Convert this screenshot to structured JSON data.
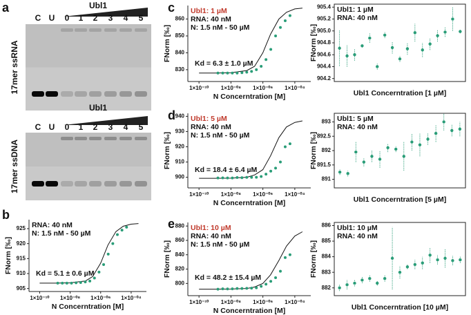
{
  "figure": {
    "panel_labels": [
      "a",
      "b",
      "c",
      "d",
      "e"
    ],
    "gels": [
      {
        "title": "Ubl1",
        "lanes": [
          "C",
          "U",
          "0",
          "1",
          "2",
          "3",
          "4",
          "5"
        ],
        "label": "17mer ssRNA"
      },
      {
        "title": "Ubl1",
        "lanes": [
          "C",
          "U",
          "0",
          "1",
          "2",
          "3",
          "4",
          "5"
        ],
        "label": "17mer ssDNA"
      }
    ]
  },
  "chart_data": [
    {
      "type": "scatter",
      "log_x": true,
      "color": "#2a9d78",
      "ylabel": "FNorm [‰]",
      "xlabel": "N Concerntration [M]",
      "annotations": [
        {
          "text": "RNA: 40 nM",
          "color": "#111111"
        },
        {
          "text": "N: 1.5 nM - 50 µM",
          "color": "#111111"
        }
      ],
      "kd": "Kd = 5.1 ± 0.6 µM",
      "x": [
        1.526e-09,
        3.05e-09,
        6.1e-09,
        1.22e-08,
        2.44e-08,
        4.88e-08,
        9.77e-08,
        1.95e-07,
        3.91e-07,
        7.81e-07,
        1.5625e-06,
        3.125e-06,
        6.25e-06,
        1.25e-05,
        2.5e-05,
        5e-05
      ],
      "values": [
        906.8,
        906.8,
        906.8,
        906.8,
        906.9,
        907,
        907.2,
        907.5,
        908.5,
        910.5,
        913,
        916.5,
        920,
        923,
        924.5,
        925.5
      ],
      "fit": {
        "x": [
          1e-10,
          1e-09,
          1e-08,
          1e-07,
          3e-07,
          1e-06,
          3e-06,
          1e-05,
          3e-05,
          0.0001,
          0.0003
        ],
        "y": [
          906.8,
          906.8,
          906.9,
          907.5,
          909,
          913.5,
          919.5,
          924,
          925.8,
          926.5,
          926.7
        ]
      },
      "xlim": [
        2e-11,
        0.001
      ],
      "ylim": [
        904,
        928
      ],
      "yticks": [
        905,
        910,
        915,
        920,
        925
      ],
      "xticks": [
        {
          "value": 1e-10,
          "label": "1×10⁻¹⁰"
        },
        {
          "value": 1e-08,
          "label": "1×10⁻⁰⁸"
        },
        {
          "value": 1e-06,
          "label": "1×10⁻⁰⁶"
        },
        {
          "value": 0.0001,
          "label": "1×10⁻⁰⁴"
        }
      ]
    },
    {
      "type": "scatter",
      "log_x": true,
      "color": "#2a9d78",
      "ylabel": "FNorm [‰]",
      "xlabel": "N Concerntration [M]",
      "annotations": [
        {
          "text": "Ubl1: 1 µM",
          "color": "#c0392b"
        },
        {
          "text": "RNA: 40 nM",
          "color": "#111111"
        },
        {
          "text": "N: 1.5 nM - 50 µM",
          "color": "#111111"
        }
      ],
      "kd": "Kd = 6.3 ± 1.0 µM",
      "x": [
        1.526e-09,
        3.05e-09,
        6.1e-09,
        1.22e-08,
        2.44e-08,
        4.88e-08,
        9.77e-08,
        1.95e-07,
        3.91e-07,
        7.81e-07,
        1.5625e-06,
        3.125e-06,
        6.25e-06,
        1.25e-05,
        2.5e-05,
        5e-05
      ],
      "values": [
        828,
        828,
        828,
        828,
        828,
        828.2,
        828.5,
        829,
        830,
        832,
        836,
        842,
        850,
        855,
        859,
        862
      ],
      "fit": {
        "x": [
          1e-10,
          1e-09,
          1e-08,
          1e-07,
          3e-07,
          1e-06,
          3e-06,
          1e-05,
          3e-05,
          0.0001,
          0.0003
        ],
        "y": [
          828,
          828,
          828.2,
          829.5,
          832,
          840,
          851,
          860,
          864,
          866,
          866.5
        ]
      },
      "xlim": [
        2e-11,
        0.001
      ],
      "ylim": [
        823,
        868
      ],
      "yticks": [
        830,
        840,
        850,
        860
      ],
      "xticks": [
        {
          "value": 1e-10,
          "label": "1×10⁻¹⁰"
        },
        {
          "value": 1e-08,
          "label": "1×10⁻⁰⁸"
        },
        {
          "value": 1e-06,
          "label": "1×10⁻⁰⁶"
        },
        {
          "value": 0.0001,
          "label": "1×10⁻⁰⁴"
        }
      ]
    },
    {
      "type": "errorbar",
      "frame": true,
      "color": "#2a9d78",
      "ylabel": "FNorm [‰]",
      "xlabel": "Ubl1 Concerntration [1 µM]",
      "annotations": [
        {
          "text": "Ubl1: 1 µM",
          "color": "#111111"
        },
        {
          "text": "RNA: 40 nM",
          "color": "#111111"
        }
      ],
      "values": [
        904.71,
        904.58,
        904.6,
        904.75,
        904.88,
        904.4,
        904.93,
        904.72,
        904.53,
        904.7,
        904.97,
        904.68,
        904.78,
        904.92,
        904.98,
        905.2,
        904.99
      ],
      "errors": [
        0.3,
        0.18,
        0.1,
        0.03,
        0.08,
        0.05,
        0.05,
        0.1,
        0.05,
        0.1,
        0.15,
        0.12,
        0.1,
        0.1,
        0.08,
        0.2,
        0.03
      ],
      "ylim": [
        904.15,
        905.45
      ],
      "yticks": [
        904.2,
        904.4,
        904.6,
        904.8,
        {
          "value": 905,
          "label": "905.0"
        },
        905.2,
        905.4
      ]
    },
    {
      "type": "scatter",
      "log_x": true,
      "color": "#2a9d78",
      "ylabel": "FNorm [‰]",
      "xlabel": "N Concerntration [M]",
      "annotations": [
        {
          "text": "Ubl1: 5 µM",
          "color": "#c0392b"
        },
        {
          "text": "RNA: 40 nM",
          "color": "#111111"
        },
        {
          "text": "N: 1.5 nM - 50 µM",
          "color": "#111111"
        }
      ],
      "kd": "Kd = 18.4 ± 6.4 µM",
      "x": [
        1.526e-09,
        3.05e-09,
        6.1e-09,
        1.22e-08,
        2.44e-08,
        4.88e-08,
        9.77e-08,
        1.95e-07,
        3.91e-07,
        7.81e-07,
        1.5625e-06,
        3.125e-06,
        6.25e-06,
        1.25e-05,
        2.5e-05,
        5e-05
      ],
      "values": [
        899.5,
        899.6,
        899.5,
        899.5,
        899.8,
        899.7,
        899.9,
        899.9,
        900,
        900.5,
        902,
        904,
        906,
        910,
        920,
        922
      ],
      "fit": {
        "x": [
          1e-10,
          1e-09,
          1e-08,
          1e-07,
          3e-07,
          1e-06,
          3e-06,
          1e-05,
          3e-05,
          0.0001,
          0.0003
        ],
        "y": [
          899.3,
          899.3,
          899.4,
          900,
          901.5,
          905,
          914,
          926,
          933,
          936,
          937
        ]
      },
      "xlim": [
        2e-11,
        0.001
      ],
      "ylim": [
        893,
        942
      ],
      "yticks": [
        900,
        910,
        920,
        930,
        940
      ],
      "xticks": [
        {
          "value": 1e-10,
          "label": "1×10⁻¹⁰"
        },
        {
          "value": 1e-08,
          "label": "1×10⁻⁰⁸"
        },
        {
          "value": 1e-06,
          "label": "1×10⁻⁰⁶"
        },
        {
          "value": 0.0001,
          "label": "1×10⁻⁰⁴"
        }
      ]
    },
    {
      "type": "errorbar",
      "frame": true,
      "color": "#2a9d78",
      "ylabel": "FNorm [‰]",
      "xlabel": "Ubl1 Concerntration [5 µM]",
      "annotations": [
        {
          "text": "Ubl1: 5 µM",
          "color": "#111111"
        },
        {
          "text": "RNA: 40 nM",
          "color": "#111111"
        }
      ],
      "values": [
        891.25,
        891.2,
        891.95,
        891.6,
        891.8,
        891.7,
        892.1,
        892.05,
        891.8,
        892.3,
        892.2,
        892.4,
        892.6,
        893.0,
        892.7,
        892.75
      ],
      "errors": [
        0.1,
        0.1,
        0.35,
        0.15,
        0.2,
        0.3,
        0.15,
        0.1,
        0.5,
        0.3,
        0.4,
        0.2,
        0.3,
        0.3,
        0.2,
        0.25
      ],
      "ylim": [
        890.7,
        893.3
      ],
      "yticks": [
        891,
        891.5,
        892,
        892.5,
        893
      ]
    },
    {
      "type": "scatter",
      "log_x": true,
      "color": "#2a9d78",
      "ylabel": "FNorm [‰]",
      "xlabel": "N Concerntration [M]",
      "annotations": [
        {
          "text": "Ubl1: 10 µM",
          "color": "#c0392b"
        },
        {
          "text": "RNA: 40 nM",
          "color": "#111111"
        },
        {
          "text": "N: 1.5 nM - 50 µM",
          "color": "#111111"
        }
      ],
      "kd": "Kd = 48.2 ± 15.4 µM",
      "x": [
        1.526e-09,
        3.05e-09,
        6.1e-09,
        1.22e-08,
        2.44e-08,
        4.88e-08,
        9.77e-08,
        1.95e-07,
        3.91e-07,
        7.81e-07,
        1.5625e-06,
        3.125e-06,
        6.25e-06,
        1.25e-05,
        2.5e-05,
        5e-05
      ],
      "values": [
        792,
        792.5,
        792.4,
        792.5,
        793,
        793,
        793.2,
        793.5,
        794,
        796,
        799,
        803,
        808,
        817,
        836,
        840
      ],
      "fit": {
        "x": [
          1e-10,
          1e-09,
          1e-08,
          1e-07,
          3e-07,
          1e-06,
          3e-06,
          1e-05,
          3e-05,
          0.0001,
          0.0003
        ],
        "y": [
          792,
          792,
          792.2,
          793,
          795,
          800,
          812,
          832,
          852,
          866,
          872
        ]
      },
      "xlim": [
        2e-11,
        0.001
      ],
      "ylim": [
        783,
        885
      ],
      "yticks": [
        800,
        820,
        840,
        860,
        880
      ],
      "xticks": [
        {
          "value": 1e-10,
          "label": "1×10⁻¹⁰"
        },
        {
          "value": 1e-08,
          "label": "1×10⁻⁰⁸"
        },
        {
          "value": 1e-06,
          "label": "1×10⁻⁰⁶"
        },
        {
          "value": 0.0001,
          "label": "1×10⁻⁰⁴"
        }
      ]
    },
    {
      "type": "errorbar",
      "frame": true,
      "color": "#2a9d78",
      "ylabel": "FNorm [‰]",
      "xlabel": "Ubl1 Concerntration [10 µM]",
      "annotations": [
        {
          "text": "Ubl1: 10 µM",
          "color": "#111111"
        },
        {
          "text": "RNA: 40 nM",
          "color": "#111111"
        }
      ],
      "values": [
        882.0,
        882.2,
        882.3,
        882.5,
        882.6,
        882.3,
        882.6,
        883.9,
        883.0,
        883.35,
        883.5,
        883.6,
        884.1,
        883.8,
        883.9,
        883.75,
        883.8
      ],
      "errors": [
        0.2,
        0.3,
        0.2,
        0.2,
        0.2,
        0.15,
        0.2,
        2.0,
        0.4,
        0.15,
        0.3,
        0.4,
        0.5,
        0.3,
        0.6,
        0.3,
        0.2
      ],
      "ylim": [
        881.5,
        886.2
      ],
      "yticks": [
        882,
        883,
        884,
        885,
        886
      ]
    }
  ]
}
